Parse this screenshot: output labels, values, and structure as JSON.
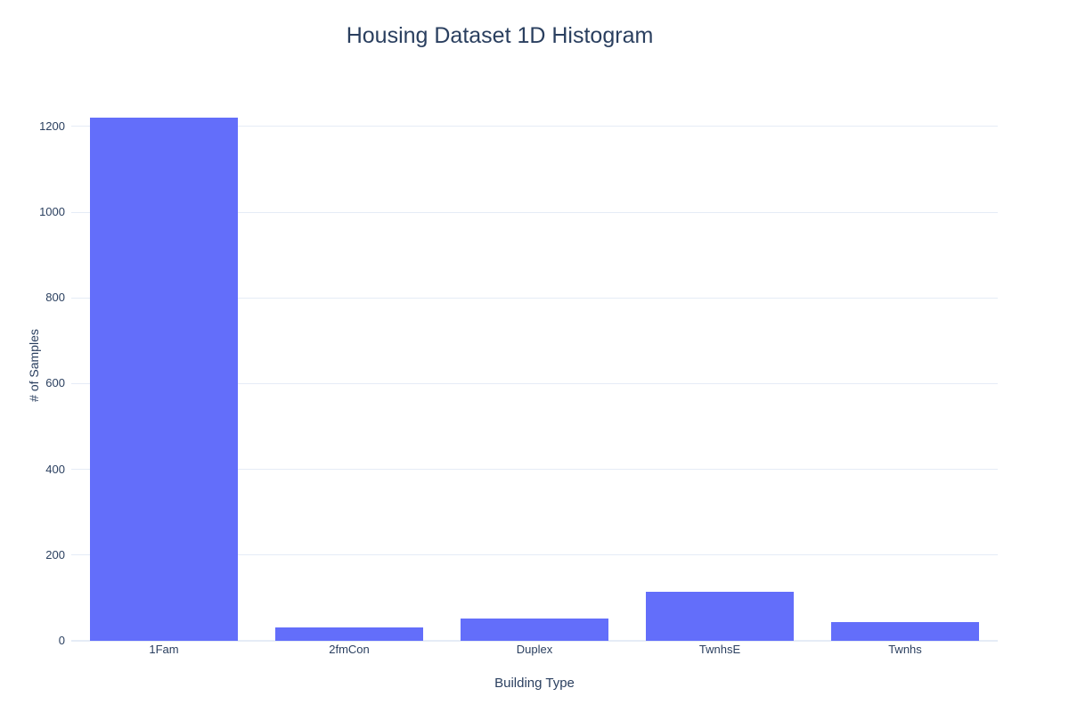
{
  "chart_data": {
    "type": "bar",
    "title": "Housing Dataset 1D Histogram",
    "categories": [
      "1Fam",
      "2fmCon",
      "Duplex",
      "TwnhsE",
      "Twnhs"
    ],
    "values": [
      1220,
      31,
      52,
      114,
      43
    ],
    "xlabel": "Building Type",
    "ylabel": "# of Samples",
    "ylim": [
      0,
      1285
    ],
    "yticks": [
      0,
      200,
      400,
      600,
      800,
      1000,
      1200
    ],
    "grid": true,
    "legend": false,
    "colors": {
      "bar": "#636efa",
      "grid": "#e5ecf6",
      "zeroline": "#e5ecf6",
      "text": "#2a3f5f",
      "background": "#ffffff"
    }
  }
}
